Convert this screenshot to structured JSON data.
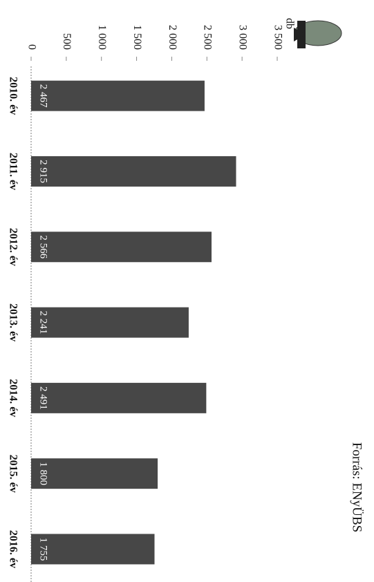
{
  "chart_data": {
    "type": "bar",
    "orientation": "rotated-90",
    "y_label": "db",
    "source": "Forrás: ENyÜBS",
    "categories": [
      "2010. év",
      "2011. év",
      "2012. év",
      "2013. év",
      "2014. év",
      "2015. év",
      "2016. év"
    ],
    "values": [
      2467,
      2915,
      2566,
      2241,
      2491,
      1800,
      1755
    ],
    "value_labels": [
      "2 467",
      "2 915",
      "2 566",
      "2 241",
      "2 491",
      "1 800",
      "1 755"
    ],
    "color": "#474747",
    "ylim": [
      0,
      3500
    ],
    "yticks": [
      0,
      500,
      {
        "value": 1000,
        "label": "1 000"
      },
      {
        "value": 1500,
        "label": "1 500"
      },
      {
        "value": 2000,
        "label": "2 000"
      },
      {
        "value": 2500,
        "label": "2 500"
      },
      {
        "value": 3000,
        "label": "3 000"
      },
      {
        "value": 3500,
        "label": "3 500"
      }
    ],
    "grid": false
  }
}
